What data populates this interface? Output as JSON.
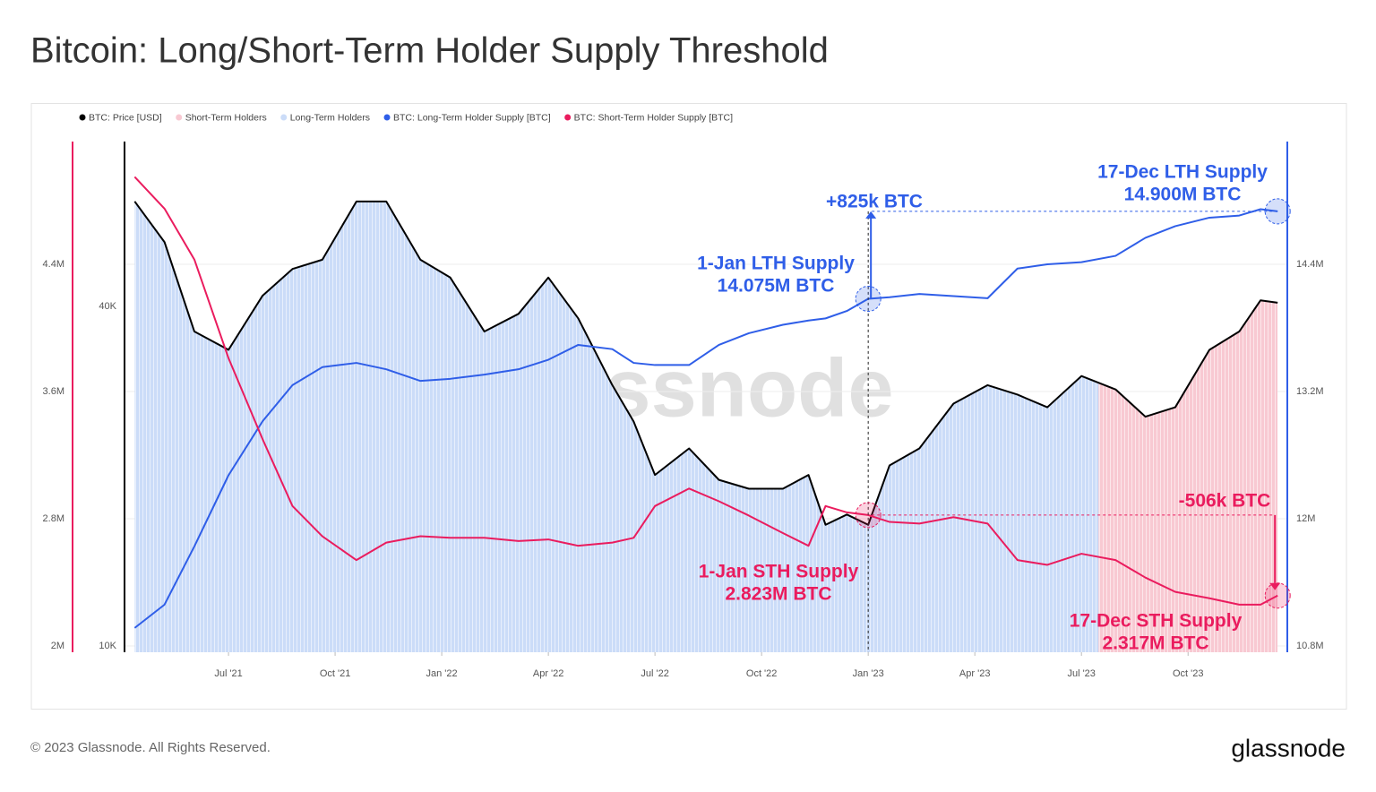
{
  "chart_data": {
    "type": "line",
    "title": "Bitcoin: Long/Short-Term Holder Supply Threshold",
    "watermark": "glassnode",
    "x": [
      2021.28,
      2021.35,
      2021.42,
      2021.5,
      2021.58,
      2021.65,
      2021.72,
      2021.8,
      2021.87,
      2021.95,
      2022.02,
      2022.1,
      2022.18,
      2022.25,
      2022.32,
      2022.4,
      2022.45,
      2022.5,
      2022.58,
      2022.65,
      2022.72,
      2022.8,
      2022.86,
      2022.9,
      2022.95,
      2023.0,
      2023.05,
      2023.12,
      2023.2,
      2023.28,
      2023.35,
      2023.42,
      2023.5,
      2023.58,
      2023.65,
      2023.72,
      2023.8,
      2023.87,
      2023.92,
      2023.96
    ],
    "xlim": [
      2021.273,
      2023.968
    ],
    "xticks": [
      {
        "value": 2021.5,
        "label": "Jul '21"
      },
      {
        "value": 2021.75,
        "label": "Oct '21"
      },
      {
        "value": 2022.0,
        "label": "Jan '22"
      },
      {
        "value": 2022.25,
        "label": "Apr '22"
      },
      {
        "value": 2022.5,
        "label": "Jul '22"
      },
      {
        "value": 2022.75,
        "label": "Oct '22"
      },
      {
        "value": 2023.0,
        "label": "Jan '23"
      },
      {
        "value": 2023.25,
        "label": "Apr '23"
      },
      {
        "value": 2023.5,
        "label": "Jul '23"
      },
      {
        "value": 2023.75,
        "label": "Oct '23"
      }
    ],
    "y_axes": [
      {
        "id": "sth",
        "side": "left",
        "color": "#ea1c5e",
        "log": false,
        "ylim": [
          2000000,
          5172000
        ],
        "yticks": [
          {
            "value": 2000000,
            "label": "2M"
          },
          {
            "value": 2800000,
            "label": "2.8M"
          },
          {
            "value": 3600000,
            "label": "3.6M"
          },
          {
            "value": 4400000,
            "label": "4.4M"
          }
        ]
      },
      {
        "id": "price",
        "side": "left",
        "color": "#000000",
        "log": true,
        "ylim": [
          10000,
          78400
        ],
        "yticks": [
          {
            "value": 10000,
            "label": "10K"
          },
          {
            "value": 40000,
            "label": "40K"
          }
        ]
      },
      {
        "id": "lth",
        "side": "right",
        "color": "#2f5ee8",
        "log": false,
        "ylim": [
          10800000,
          15558000
        ],
        "yticks": [
          {
            "value": 10800000,
            "label": "10.8M"
          },
          {
            "value": 12000000,
            "label": "12M"
          },
          {
            "value": 13200000,
            "label": "13.2M"
          },
          {
            "value": 14400000,
            "label": "14.4M"
          }
        ],
        "grid": true
      }
    ],
    "series": [
      {
        "name": "BTC: Price [USD]",
        "color": "#000000",
        "axis": "price",
        "values": [
          61400,
          52000,
          36100,
          33500,
          41800,
          46600,
          48400,
          61400,
          61400,
          48400,
          45000,
          36100,
          38800,
          45000,
          38100,
          29000,
          25000,
          20100,
          22400,
          19700,
          19000,
          19000,
          20100,
          16400,
          17100,
          16400,
          20900,
          22400,
          26900,
          29000,
          27900,
          26500,
          30100,
          28500,
          25500,
          26500,
          33500,
          36100,
          41000,
          40600
        ]
      },
      {
        "name": "BTC: Long-Term Holder Supply [BTC]",
        "color": "#2f5ee8",
        "axis": "lth",
        "values": [
          10970000,
          11190000,
          11740000,
          12410000,
          12920000,
          13260000,
          13430000,
          13470000,
          13410000,
          13300000,
          13320000,
          13360000,
          13410000,
          13500000,
          13640000,
          13600000,
          13470000,
          13450000,
          13450000,
          13640000,
          13750000,
          13830000,
          13870000,
          13890000,
          13960000,
          14075000,
          14090000,
          14120000,
          14100000,
          14080000,
          14360000,
          14400000,
          14420000,
          14480000,
          14650000,
          14760000,
          14840000,
          14860000,
          14920000,
          14900000
        ]
      },
      {
        "name": "BTC: Short-Term Holder Supply [BTC]",
        "color": "#ea1c5e",
        "axis": "sth",
        "values": [
          4950000,
          4750000,
          4430000,
          3810000,
          3300000,
          2880000,
          2690000,
          2540000,
          2650000,
          2690000,
          2680000,
          2680000,
          2660000,
          2670000,
          2630000,
          2650000,
          2680000,
          2880000,
          2990000,
          2910000,
          2820000,
          2710000,
          2630000,
          2880000,
          2840000,
          2823000,
          2780000,
          2770000,
          2810000,
          2770000,
          2540000,
          2510000,
          2580000,
          2540000,
          2430000,
          2340000,
          2300000,
          2260000,
          2260000,
          2317000
        ]
      }
    ],
    "regimes": [
      {
        "name": "Short-Term Holders",
        "color": "#f8c9d2",
        "x_range": [
          2023.54,
          2023.96
        ]
      },
      {
        "name": "Long-Term Holders",
        "color": "#cbdcf8",
        "x_range": [
          2021.28,
          2023.54
        ]
      }
    ],
    "annotations": [
      {
        "color": "#2f5ee8",
        "lines": [
          "+825k BTC"
        ]
      },
      {
        "color": "#2f5ee8",
        "lines": [
          "1-Jan LTH Supply",
          "14.075M BTC"
        ]
      },
      {
        "color": "#2f5ee8",
        "lines": [
          "17-Dec LTH Supply",
          "14.900M BTC"
        ]
      },
      {
        "color": "#ea1c5e",
        "lines": [
          "-506k BTC"
        ]
      },
      {
        "color": "#ea1c5e",
        "lines": [
          "1-Jan STH Supply",
          "2.823M BTC"
        ]
      },
      {
        "color": "#ea1c5e",
        "lines": [
          "17-Dec STH Supply",
          "2.317M BTC"
        ]
      }
    ]
  },
  "footer": {
    "copyright": "© 2023 Glassnode. All Rights Reserved.",
    "logo": "glassnode"
  }
}
